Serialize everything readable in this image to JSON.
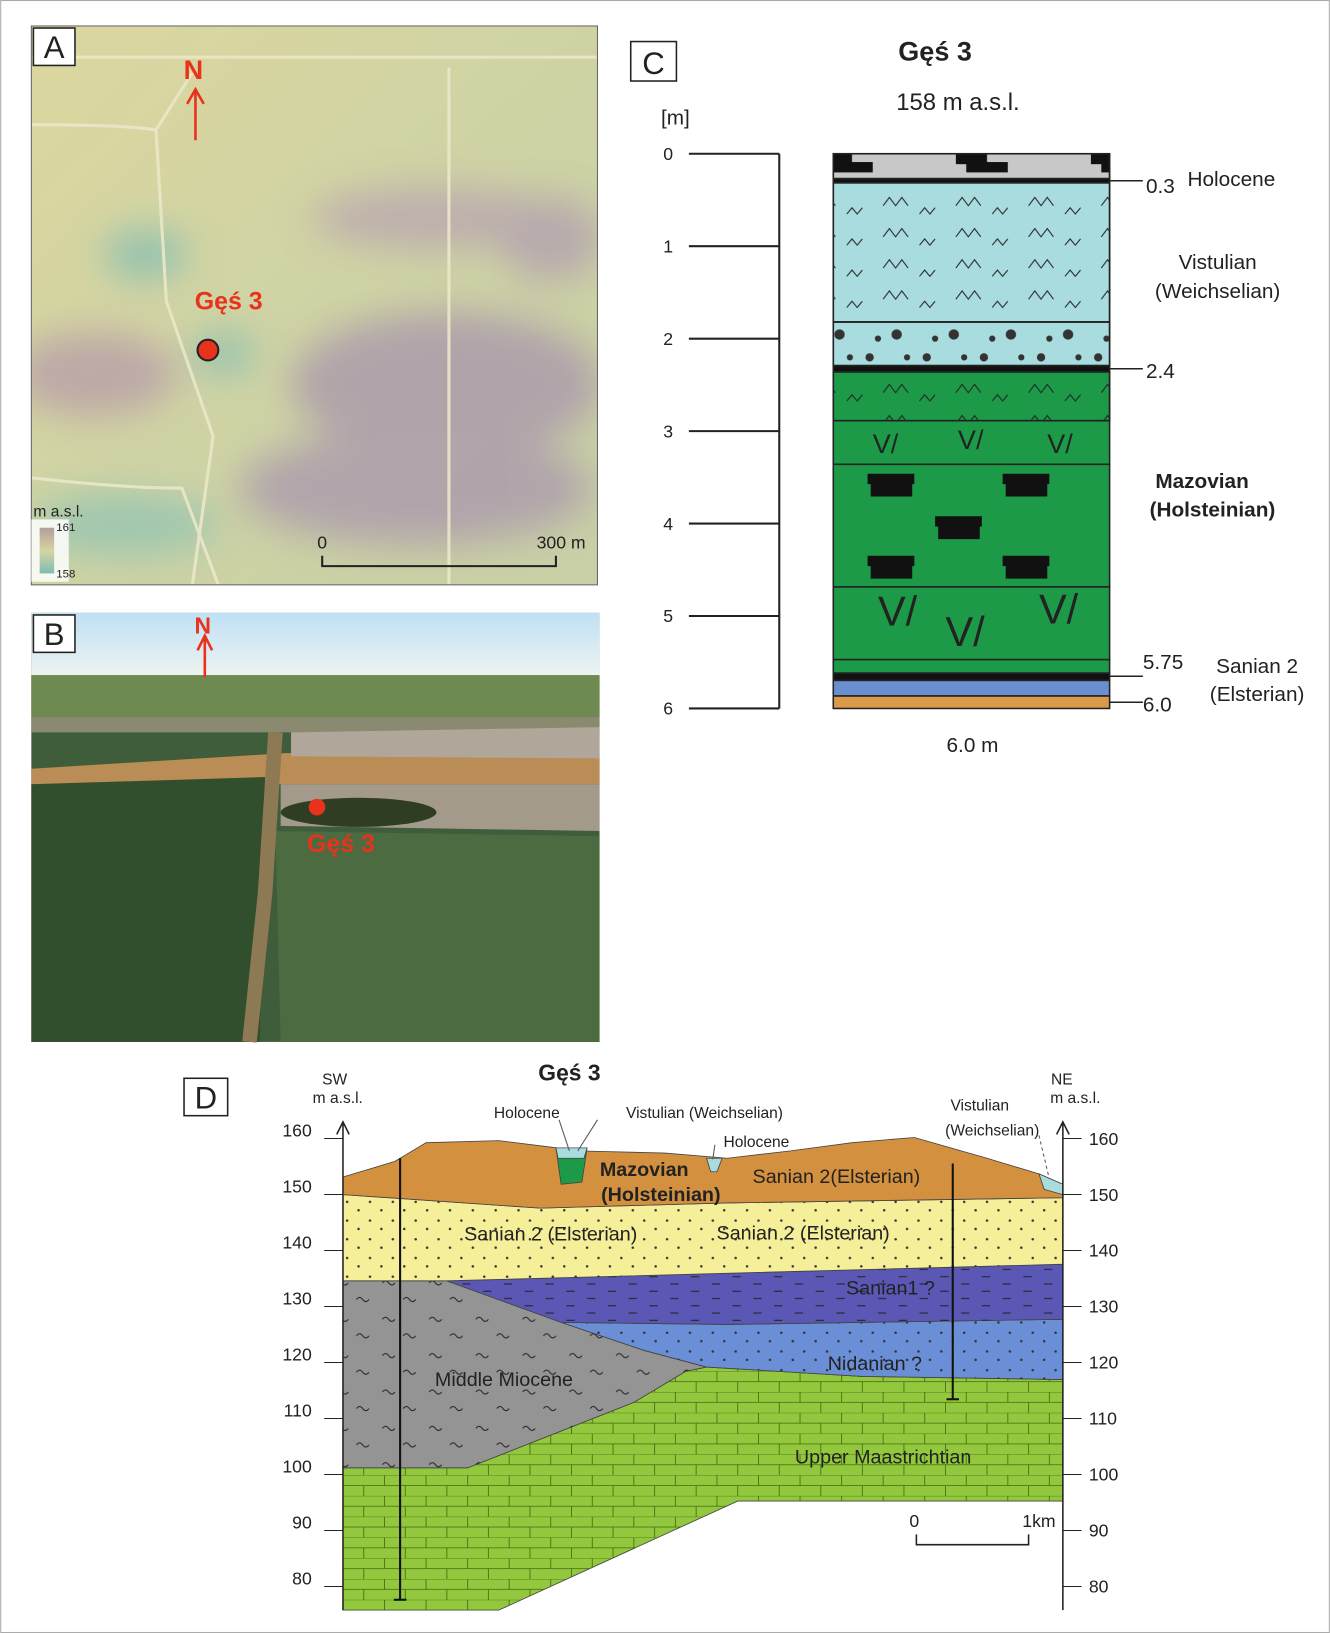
{
  "panel_a": {
    "label": "A",
    "north": "N",
    "site": "Gęś 3",
    "legend_title": "m a.s.l.",
    "legend_max": "161",
    "legend_min": "158",
    "scale_start": "0",
    "scale_end": "300 m"
  },
  "panel_b": {
    "label": "B",
    "north": "N",
    "site": "Gęś 3"
  },
  "panel_c": {
    "label": "C",
    "title": "Gęś 3",
    "elevation": "158 m a.s.l.",
    "unit": "[m]",
    "depth_ticks": [
      "0",
      "1",
      "2",
      "3",
      "4",
      "5",
      "6"
    ],
    "boundaries": [
      "0.3",
      "2.4",
      "5.75",
      "6.0"
    ],
    "units": [
      [
        "Holocene"
      ],
      [
        "Vistulian",
        "(Weichselian)"
      ],
      [
        "Mazovian",
        "(Holsteinian)"
      ],
      [
        "Sanian 2",
        "(Elsterian)"
      ]
    ],
    "total": "6.0 m"
  },
  "panel_d": {
    "label": "D",
    "title": "Gęś 3",
    "left_end": "SW",
    "left_unit": "m a.s.l.",
    "right_end": "NE",
    "right_unit": "m a.s.l.",
    "ticks": [
      "160",
      "150",
      "140",
      "130",
      "120",
      "110",
      "100",
      "90",
      "80"
    ],
    "labels": {
      "holocene_1": "Holocene",
      "vistulian_1": "Vistulian (Weichselian)",
      "holocene_2": "Holocene",
      "vistulian_2": [
        "Vistulian",
        "(Weichselian)"
      ],
      "mazovian": [
        "Mazovian",
        "(Holsteinian)"
      ],
      "sanian_till": "Sanian 2(Elsterian)",
      "sanian_sand_1": "Sanian 2 (Elsterian)",
      "sanian_sand_2": "Sanian 2 (Elsterian)",
      "sanian1": "Sanian1 ?",
      "nidanian": "Nidanian ?",
      "miocene": "Middle Miocene",
      "maastrichtian": "Upper Maastrichtian"
    },
    "scale_start": "0",
    "scale_end": "1km"
  }
}
